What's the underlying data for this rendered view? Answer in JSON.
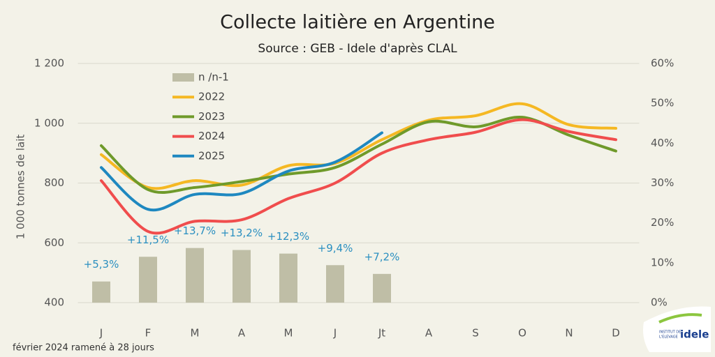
{
  "chart_data": {
    "type": "line",
    "title": "Collecte laitière en Argentine",
    "subtitle": "Source : GEB - Idele d'après CLAL",
    "y_label": "1 000 tonnes de lait",
    "note": "février 2024 ramené à 28 jours",
    "categories": [
      "J",
      "F",
      "M",
      "A",
      "M",
      "J",
      "Jt",
      "A",
      "S",
      "O",
      "N",
      "D"
    ],
    "ylim": [
      400,
      1200
    ],
    "yticks": [
      400,
      600,
      800,
      {
        "value": 1000,
        "label": "1 000"
      },
      {
        "value": 1200,
        "label": "1 200"
      }
    ],
    "y2lim": [
      0,
      60
    ],
    "y2ticks": [
      {
        "value": 0,
        "label": "0%"
      },
      {
        "value": 10,
        "label": "10%"
      },
      {
        "value": 20,
        "label": "20%"
      },
      {
        "value": 30,
        "label": "30%"
      },
      {
        "value": 40,
        "label": "40%"
      },
      {
        "value": 50,
        "label": "50%"
      },
      {
        "value": 60,
        "label": "60%"
      }
    ],
    "grid": true,
    "series": [
      {
        "name": "n /n-1",
        "type": "bar",
        "axis": "y2",
        "color": "#bfbea6",
        "values": [
          5.3,
          11.5,
          13.7,
          13.2,
          12.3,
          9.4,
          7.2,
          null,
          null,
          null,
          null,
          null
        ],
        "value_labels": [
          "+5,3%",
          "+11,5%",
          "+13,7%",
          "+13,2%",
          "+12,3%",
          "+9,4%",
          "+7,2%",
          null,
          null,
          null,
          null,
          null
        ]
      },
      {
        "name": "2022",
        "color": "#f5b823",
        "values": [
          895,
          785,
          808,
          793,
          858,
          866,
          945,
          1010,
          1025,
          1065,
          995,
          983
        ]
      },
      {
        "name": "2023",
        "color": "#6f9a2a",
        "values": [
          925,
          778,
          785,
          805,
          830,
          852,
          930,
          1005,
          988,
          1020,
          960,
          907
        ]
      },
      {
        "name": "2024",
        "color": "#f04d4d",
        "values": [
          808,
          638,
          672,
          677,
          748,
          800,
          900,
          945,
          970,
          1012,
          972,
          945
        ]
      },
      {
        "name": "2025",
        "color": "#1e88c0",
        "values": [
          852,
          712,
          762,
          765,
          840,
          870,
          968,
          null,
          null,
          null,
          null,
          null
        ]
      }
    ]
  },
  "logo": {
    "line1": "INSTITUT DE",
    "line2": "L'ELEVAGE",
    "brand": "idele"
  }
}
